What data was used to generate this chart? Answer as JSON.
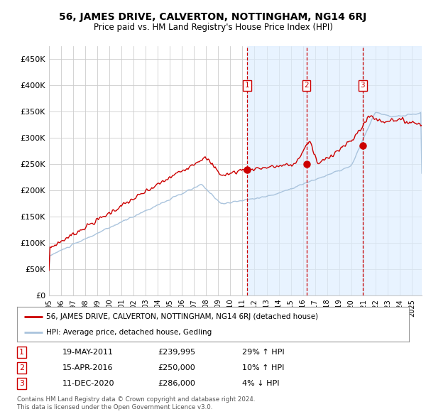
{
  "title": "56, JAMES DRIVE, CALVERTON, NOTTINGHAM, NG14 6RJ",
  "subtitle": "Price paid vs. HM Land Registry's House Price Index (HPI)",
  "ylabel_ticks": [
    "£0",
    "£50K",
    "£100K",
    "£150K",
    "£200K",
    "£250K",
    "£300K",
    "£350K",
    "£400K",
    "£450K"
  ],
  "ytick_values": [
    0,
    50000,
    100000,
    150000,
    200000,
    250000,
    300000,
    350000,
    400000,
    450000
  ],
  "ylim": [
    0,
    475000
  ],
  "xlim_start": 1995.0,
  "xlim_end": 2025.83,
  "transactions": [
    {
      "label": "1",
      "date_num": 2011.37,
      "price": 239995,
      "hpi_rel": "29% ↑ HPI",
      "date_str": "19-MAY-2011"
    },
    {
      "label": "2",
      "date_num": 2016.29,
      "price": 250000,
      "hpi_rel": "10% ↑ HPI",
      "date_str": "15-APR-2016"
    },
    {
      "label": "3",
      "date_num": 2020.95,
      "price": 286000,
      "hpi_rel": "4% ↓ HPI",
      "date_str": "11-DEC-2020"
    }
  ],
  "legend_line1": "56, JAMES DRIVE, CALVERTON, NOTTINGHAM, NG14 6RJ (detached house)",
  "legend_line2": "HPI: Average price, detached house, Gedling",
  "footer_line1": "Contains HM Land Registry data © Crown copyright and database right 2024.",
  "footer_line2": "This data is licensed under the Open Government Licence v3.0.",
  "hpi_line_color": "#aac4dd",
  "price_line_color": "#cc0000",
  "highlight_fill": "#ddeeff",
  "vline_color": "#cc0000",
  "dot_color": "#cc0000",
  "background_color": "#ffffff",
  "grid_color": "#cccccc",
  "table_rows": [
    [
      "1",
      "19-MAY-2011",
      "£239,995",
      "29% ↑ HPI"
    ],
    [
      "2",
      "15-APR-2016",
      "£250,000",
      "10% ↑ HPI"
    ],
    [
      "3",
      "11-DEC-2020",
      "£286,000",
      "4% ↓ HPI"
    ]
  ]
}
